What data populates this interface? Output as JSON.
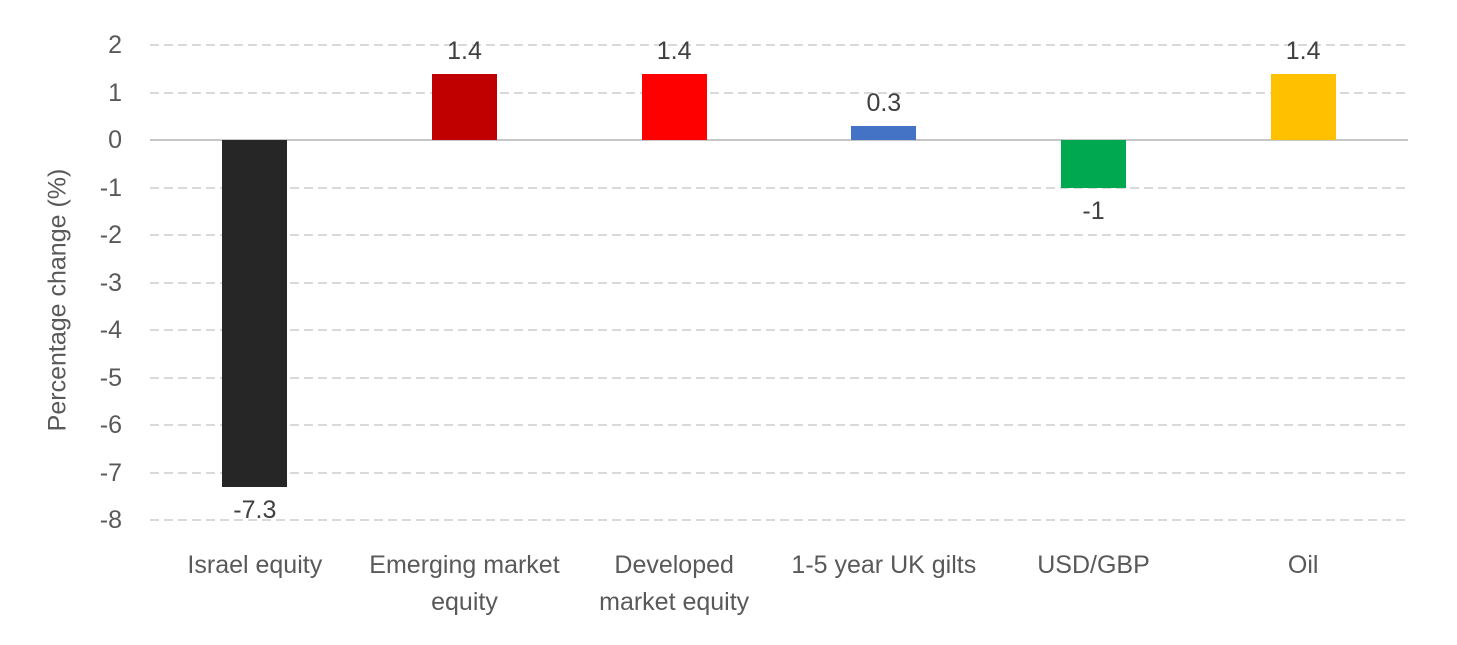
{
  "chart_data": {
    "type": "bar",
    "title": "",
    "xlabel": "",
    "ylabel": "Percentage change (%)",
    "ylim": [
      -8,
      2
    ],
    "yticks": [
      2,
      1,
      0,
      -1,
      -2,
      -3,
      -4,
      -5,
      -6,
      -7,
      -8
    ],
    "grid": "horizontal-dashed",
    "legend_position": "none",
    "categories": [
      "Israel equity",
      "Emerging market equity",
      "Developed market equity",
      "1-5 year UK gilts",
      "USD/GBP",
      "Oil"
    ],
    "category_display_lines": [
      [
        "Israel equity"
      ],
      [
        "Emerging market",
        "equity"
      ],
      [
        "Developed",
        "market equity"
      ],
      [
        "1-5 year UK gilts"
      ],
      [
        "USD/GBP"
      ],
      [
        "Oil"
      ]
    ],
    "values": [
      -7.3,
      1.4,
      1.4,
      0.3,
      -1,
      1.4
    ],
    "value_labels": [
      "-7.3",
      "1.4",
      "1.4",
      "0.3",
      "-1",
      "1.4"
    ],
    "bar_colors": [
      "#262626",
      "#C00000",
      "#FF0000",
      "#4472C4",
      "#00A94F",
      "#FFC000"
    ]
  },
  "colors": {
    "background": "#FFFFFF",
    "gridline": "#D9D9D9",
    "zero_line": "#C6C6C6",
    "tick_label_text": "#595959",
    "axis_title_text": "#595959",
    "data_label_text": "#404040"
  }
}
